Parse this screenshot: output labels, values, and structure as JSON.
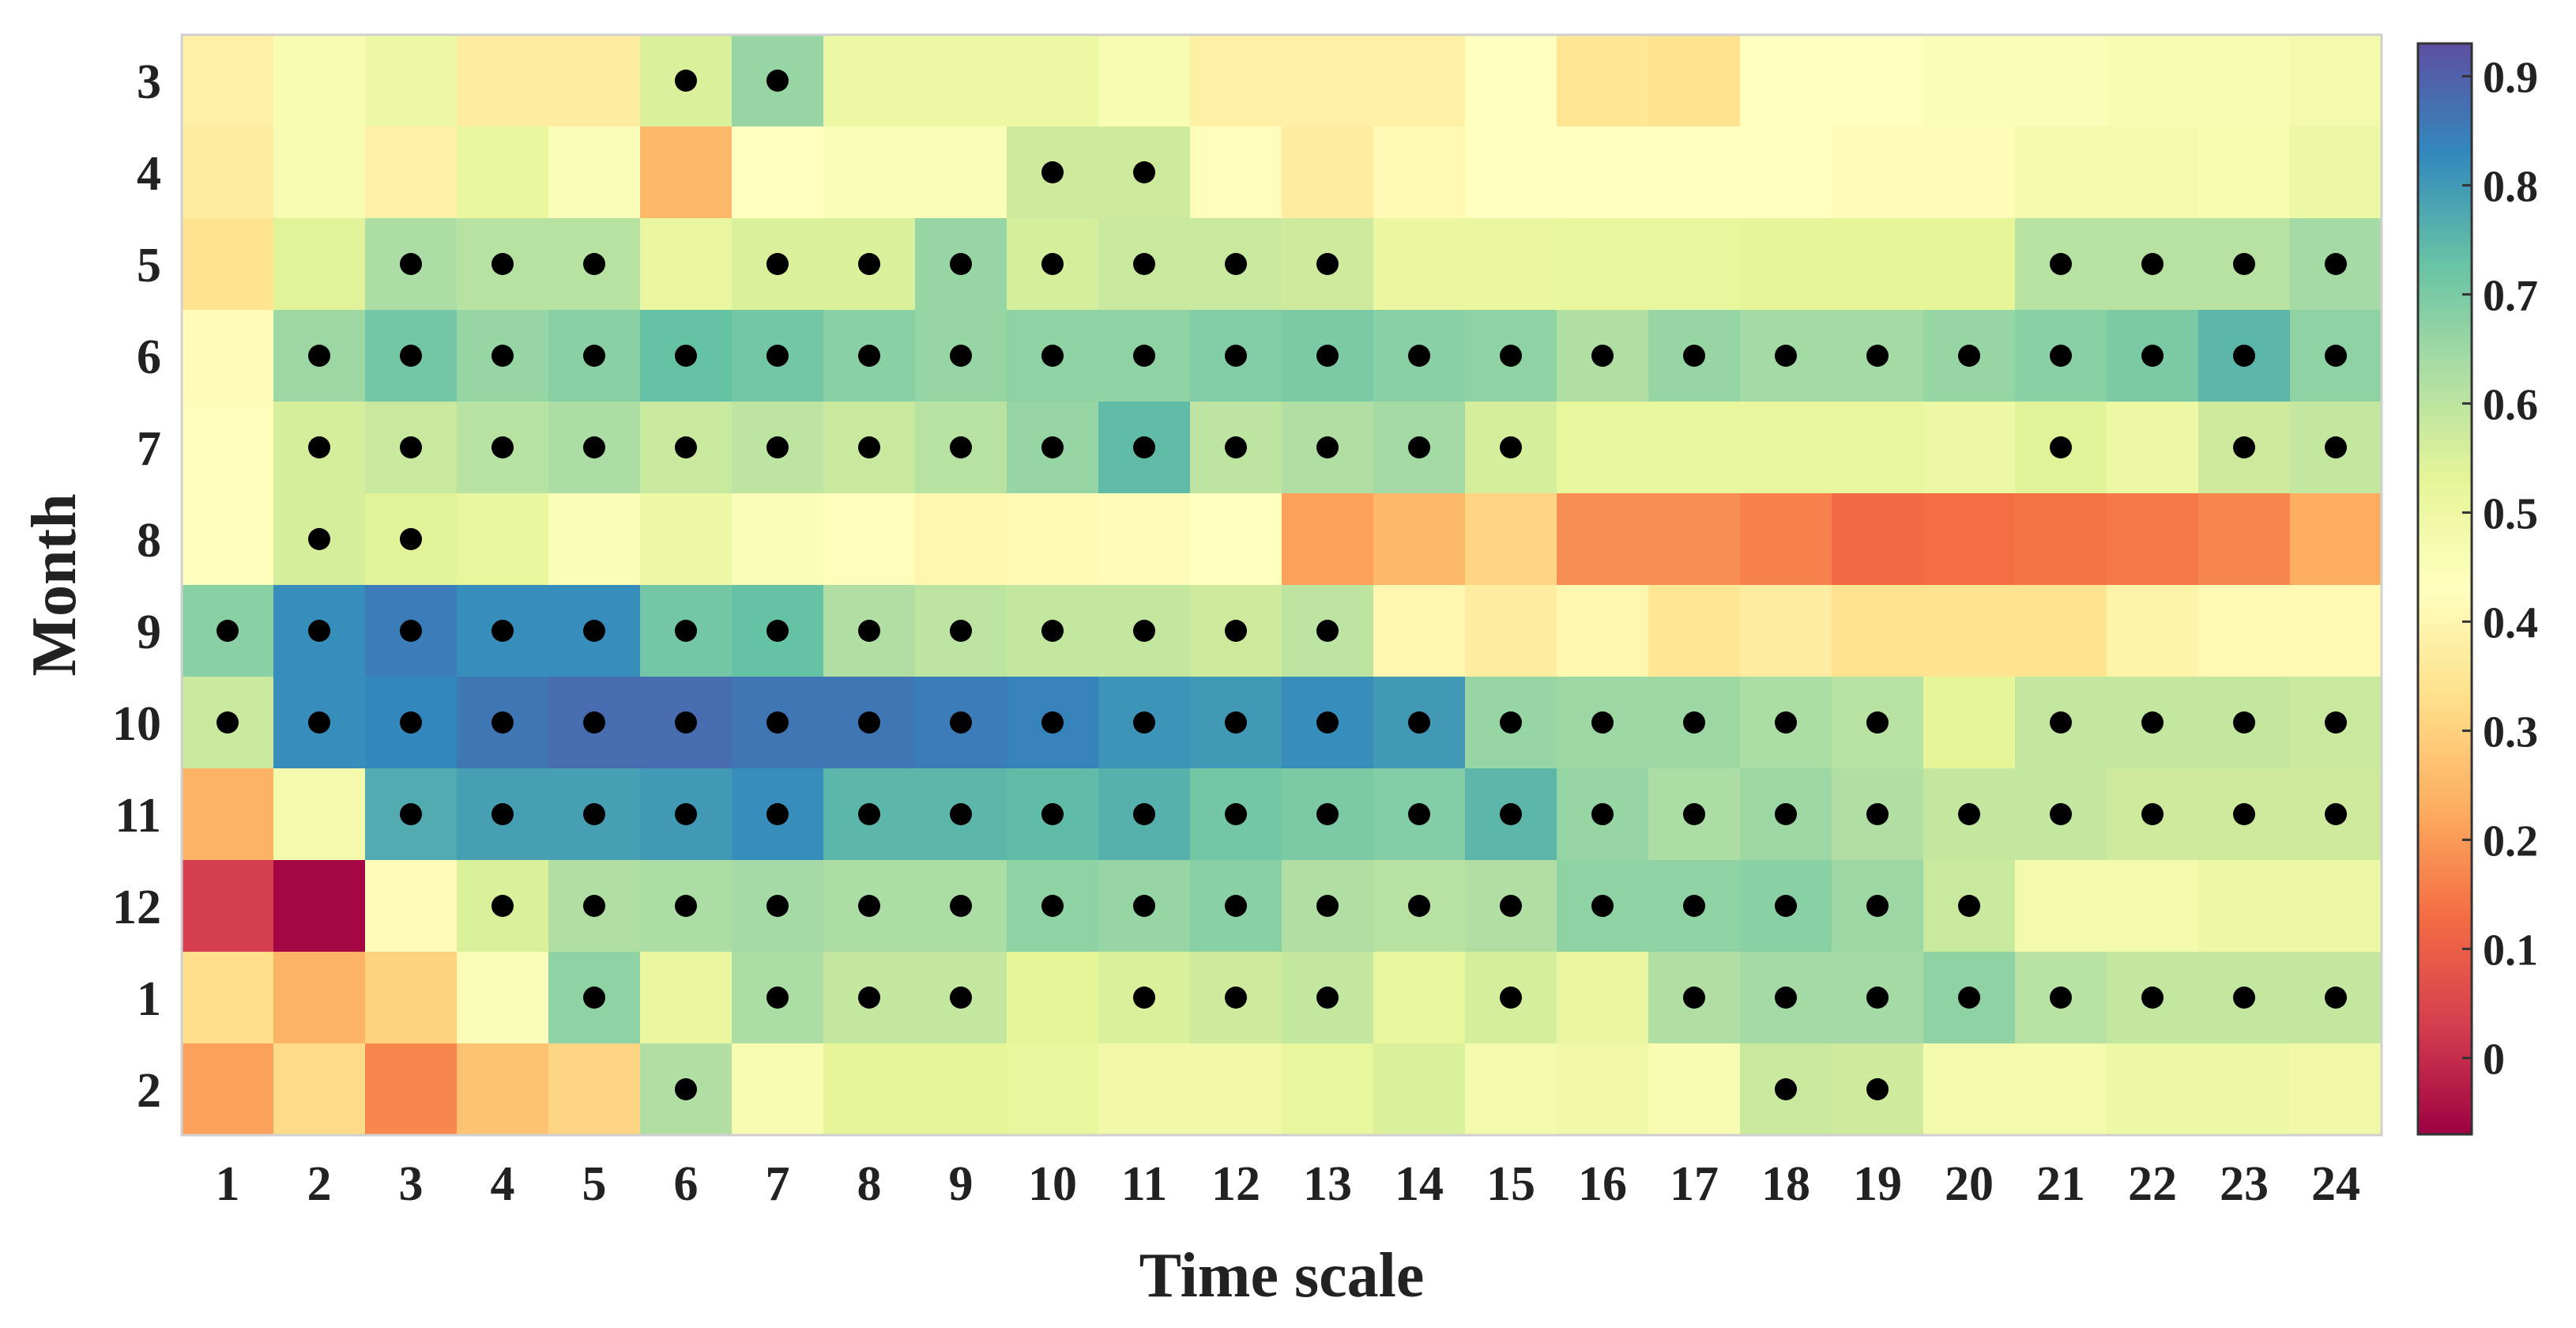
{
  "chart_data": {
    "type": "heatmap",
    "xlabel": "Time scale",
    "ylabel": "Month",
    "x_categories": [
      "1",
      "2",
      "3",
      "4",
      "5",
      "6",
      "7",
      "8",
      "9",
      "10",
      "11",
      "12",
      "13",
      "14",
      "15",
      "16",
      "17",
      "18",
      "19",
      "20",
      "21",
      "22",
      "23",
      "24"
    ],
    "y_categories": [
      "3",
      "4",
      "5",
      "6",
      "7",
      "8",
      "9",
      "10",
      "11",
      "12",
      "1",
      "2"
    ],
    "values": [
      [
        0.38,
        0.46,
        0.5,
        0.37,
        0.37,
        0.55,
        0.66,
        0.5,
        0.5,
        0.5,
        0.46,
        0.38,
        0.38,
        0.38,
        0.43,
        0.35,
        0.34,
        0.43,
        0.43,
        0.45,
        0.45,
        0.46,
        0.46,
        0.48
      ],
      [
        0.37,
        0.46,
        0.38,
        0.52,
        0.45,
        0.25,
        0.43,
        0.45,
        0.45,
        0.57,
        0.57,
        0.44,
        0.37,
        0.41,
        0.43,
        0.43,
        0.43,
        0.43,
        0.42,
        0.42,
        0.48,
        0.48,
        0.47,
        0.5
      ],
      [
        0.34,
        0.54,
        0.63,
        0.61,
        0.61,
        0.51,
        0.55,
        0.55,
        0.66,
        0.56,
        0.58,
        0.58,
        0.57,
        0.51,
        0.51,
        0.52,
        0.52,
        0.53,
        0.53,
        0.53,
        0.61,
        0.61,
        0.61,
        0.64
      ],
      [
        0.42,
        0.65,
        0.71,
        0.66,
        0.68,
        0.73,
        0.71,
        0.68,
        0.66,
        0.67,
        0.67,
        0.69,
        0.7,
        0.68,
        0.67,
        0.62,
        0.66,
        0.64,
        0.64,
        0.66,
        0.68,
        0.7,
        0.75,
        0.67
      ],
      [
        0.44,
        0.56,
        0.58,
        0.61,
        0.63,
        0.58,
        0.6,
        0.58,
        0.61,
        0.66,
        0.74,
        0.6,
        0.62,
        0.64,
        0.56,
        0.52,
        0.52,
        0.52,
        0.52,
        0.5,
        0.54,
        0.5,
        0.57,
        0.59
      ],
      [
        0.44,
        0.56,
        0.54,
        0.52,
        0.45,
        0.5,
        0.45,
        0.44,
        0.4,
        0.41,
        0.42,
        0.43,
        0.21,
        0.25,
        0.31,
        0.18,
        0.18,
        0.16,
        0.12,
        0.13,
        0.14,
        0.15,
        0.17,
        0.23
      ],
      [
        0.68,
        0.82,
        0.85,
        0.82,
        0.82,
        0.71,
        0.73,
        0.62,
        0.6,
        0.59,
        0.59,
        0.57,
        0.6,
        0.4,
        0.37,
        0.4,
        0.35,
        0.37,
        0.34,
        0.34,
        0.34,
        0.39,
        0.41,
        0.41
      ],
      [
        0.58,
        0.82,
        0.83,
        0.86,
        0.88,
        0.88,
        0.86,
        0.86,
        0.85,
        0.84,
        0.81,
        0.8,
        0.82,
        0.8,
        0.66,
        0.65,
        0.65,
        0.63,
        0.61,
        0.53,
        0.59,
        0.59,
        0.59,
        0.58
      ],
      [
        0.24,
        0.48,
        0.77,
        0.79,
        0.79,
        0.8,
        0.82,
        0.75,
        0.75,
        0.74,
        0.76,
        0.71,
        0.7,
        0.69,
        0.75,
        0.66,
        0.63,
        0.65,
        0.62,
        0.59,
        0.59,
        0.57,
        0.57,
        0.57
      ],
      [
        0.03,
        -0.06,
        0.42,
        0.55,
        0.62,
        0.63,
        0.64,
        0.63,
        0.63,
        0.67,
        0.66,
        0.68,
        0.62,
        0.61,
        0.62,
        0.67,
        0.67,
        0.68,
        0.65,
        0.58,
        0.48,
        0.48,
        0.5,
        0.5
      ],
      [
        0.33,
        0.24,
        0.3,
        0.45,
        0.67,
        0.51,
        0.63,
        0.59,
        0.59,
        0.53,
        0.55,
        0.57,
        0.59,
        0.52,
        0.56,
        0.51,
        0.62,
        0.64,
        0.64,
        0.67,
        0.61,
        0.59,
        0.59,
        0.59
      ],
      [
        0.21,
        0.32,
        0.17,
        0.27,
        0.31,
        0.62,
        0.46,
        0.53,
        0.53,
        0.52,
        0.49,
        0.49,
        0.52,
        0.55,
        0.48,
        0.49,
        0.46,
        0.58,
        0.57,
        0.48,
        0.48,
        0.5,
        0.5,
        0.49
      ]
    ],
    "significant": [
      [
        0,
        0,
        0,
        0,
        0,
        1,
        1,
        0,
        0,
        0,
        0,
        0,
        0,
        0,
        0,
        0,
        0,
        0,
        0,
        0,
        0,
        0,
        0,
        0
      ],
      [
        0,
        0,
        0,
        0,
        0,
        0,
        0,
        0,
        0,
        1,
        1,
        0,
        0,
        0,
        0,
        0,
        0,
        0,
        0,
        0,
        0,
        0,
        0,
        0
      ],
      [
        0,
        0,
        1,
        1,
        1,
        0,
        1,
        1,
        1,
        1,
        1,
        1,
        1,
        0,
        0,
        0,
        0,
        0,
        0,
        0,
        1,
        1,
        1,
        1
      ],
      [
        0,
        1,
        1,
        1,
        1,
        1,
        1,
        1,
        1,
        1,
        1,
        1,
        1,
        1,
        1,
        1,
        1,
        1,
        1,
        1,
        1,
        1,
        1,
        1
      ],
      [
        0,
        1,
        1,
        1,
        1,
        1,
        1,
        1,
        1,
        1,
        1,
        1,
        1,
        1,
        1,
        0,
        0,
        0,
        0,
        0,
        1,
        0,
        1,
        1
      ],
      [
        0,
        1,
        1,
        0,
        0,
        0,
        0,
        0,
        0,
        0,
        0,
        0,
        0,
        0,
        0,
        0,
        0,
        0,
        0,
        0,
        0,
        0,
        0,
        0
      ],
      [
        1,
        1,
        1,
        1,
        1,
        1,
        1,
        1,
        1,
        1,
        1,
        1,
        1,
        0,
        0,
        0,
        0,
        0,
        0,
        0,
        0,
        0,
        0,
        0
      ],
      [
        1,
        1,
        1,
        1,
        1,
        1,
        1,
        1,
        1,
        1,
        1,
        1,
        1,
        1,
        1,
        1,
        1,
        1,
        1,
        0,
        1,
        1,
        1,
        1
      ],
      [
        0,
        0,
        1,
        1,
        1,
        1,
        1,
        1,
        1,
        1,
        1,
        1,
        1,
        1,
        1,
        1,
        1,
        1,
        1,
        1,
        1,
        1,
        1,
        1
      ],
      [
        0,
        0,
        0,
        1,
        1,
        1,
        1,
        1,
        1,
        1,
        1,
        1,
        1,
        1,
        1,
        1,
        1,
        1,
        1,
        1,
        0,
        0,
        0,
        0
      ],
      [
        0,
        0,
        0,
        0,
        1,
        0,
        1,
        1,
        1,
        0,
        1,
        1,
        1,
        0,
        1,
        0,
        1,
        1,
        1,
        1,
        1,
        1,
        1,
        1
      ],
      [
        0,
        0,
        0,
        0,
        0,
        1,
        0,
        0,
        0,
        0,
        0,
        0,
        0,
        0,
        0,
        0,
        0,
        1,
        1,
        0,
        0,
        0,
        0,
        0
      ]
    ],
    "colorbar": {
      "range": [
        -0.07,
        0.93
      ],
      "ticks": [
        "0",
        "0.1",
        "0.2",
        "0.3",
        "0.4",
        "0.5",
        "0.6",
        "0.7",
        "0.8",
        "0.9"
      ]
    },
    "colormap": [
      [
        0.0,
        "#9e0142"
      ],
      [
        0.1,
        "#d53e4f"
      ],
      [
        0.2,
        "#f46d43"
      ],
      [
        0.3,
        "#fdae61"
      ],
      [
        0.4,
        "#fee08b"
      ],
      [
        0.5,
        "#ffffbf"
      ],
      [
        0.6,
        "#e6f598"
      ],
      [
        0.7,
        "#abdda4"
      ],
      [
        0.8,
        "#66c2a5"
      ],
      [
        0.9,
        "#3288bd"
      ],
      [
        1.0,
        "#5e4fa2"
      ]
    ],
    "marker_color": "#000000",
    "grid": false
  }
}
